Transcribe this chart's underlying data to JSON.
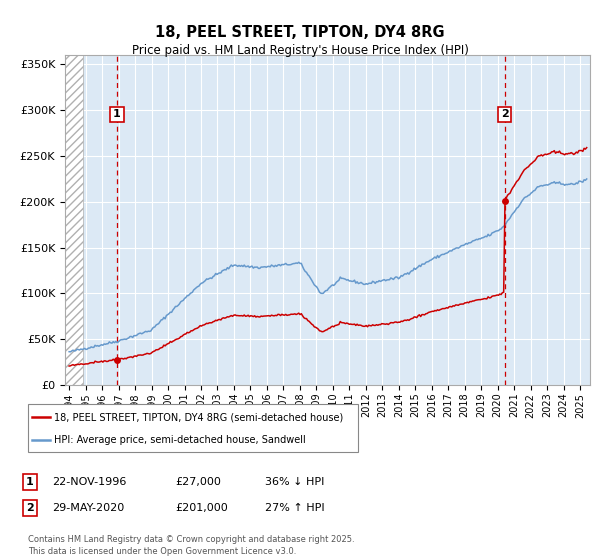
{
  "title1": "18, PEEL STREET, TIPTON, DY4 8RG",
  "title2": "Price paid vs. HM Land Registry's House Price Index (HPI)",
  "sale1_price": 27000,
  "sale2_price": 201000,
  "legend_house": "18, PEEL STREET, TIPTON, DY4 8RG (semi-detached house)",
  "legend_hpi": "HPI: Average price, semi-detached house, Sandwell",
  "footnote1": "Contains HM Land Registry data © Crown copyright and database right 2025.",
  "footnote2": "This data is licensed under the Open Government Licence v3.0.",
  "table_row1_date": "22-NOV-1996",
  "table_row1_price": "£27,000",
  "table_row1_hpi": "36% ↓ HPI",
  "table_row2_date": "29-MAY-2020",
  "table_row2_price": "£201,000",
  "table_row2_hpi": "27% ↑ HPI",
  "house_color": "#cc0000",
  "hpi_color": "#6699cc",
  "bg_color": "#dce9f5",
  "ylim_max": 360000,
  "xlim_start": 1993.75,
  "xlim_end": 2025.6,
  "sale1_yr": 1996.896,
  "sale2_yr": 2020.414
}
